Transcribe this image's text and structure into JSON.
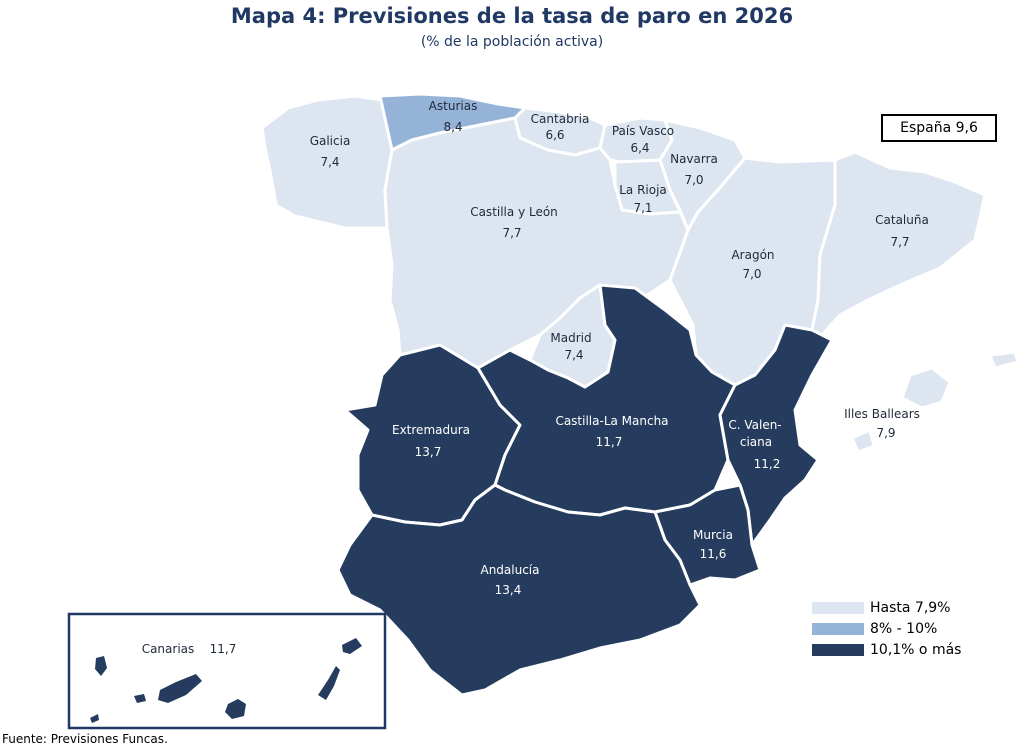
{
  "title": "Mapa 4: Previsiones de la tasa de paro en 2026",
  "subtitle": "(% de la población activa)",
  "national": "España 9,6",
  "colors": {
    "low": "#dde5f1",
    "mid": "#95b3d7",
    "high": "#263c5e"
  },
  "regions": {
    "galicia": {
      "name": "Galicia",
      "value": "7,4",
      "class": "low"
    },
    "asturias": {
      "name": "Asturias",
      "value": "8,4",
      "class": "mid"
    },
    "cantabria": {
      "name": "Cantabria",
      "value": "6,6",
      "class": "low"
    },
    "pais_vasco": {
      "name": "País Vasco",
      "value": "6,4",
      "class": "low"
    },
    "navarra": {
      "name": "Navarra",
      "value": "7,0",
      "class": "low"
    },
    "la_rioja": {
      "name": "La Rioja",
      "value": "7,1",
      "class": "low"
    },
    "castilla_leon": {
      "name": "Castilla y León",
      "value": "7,7",
      "class": "low"
    },
    "aragon": {
      "name": "Aragón",
      "value": "7,0",
      "class": "low"
    },
    "cataluna": {
      "name": "Cataluña",
      "value": "7,7",
      "class": "low"
    },
    "madrid": {
      "name": "Madrid",
      "value": "7,4",
      "class": "low"
    },
    "extremadura": {
      "name": "Extremadura",
      "value": "13,7",
      "class": "high"
    },
    "castilla_la_mancha": {
      "name": "Castilla-La Mancha",
      "value": "11,7",
      "class": "high"
    },
    "c_valenciana": {
      "name1": "C. Valen-",
      "name2": "ciana",
      "value": "11,2",
      "class": "high"
    },
    "baleares": {
      "name": "Illes Ballears",
      "value": "7,9",
      "class": "low"
    },
    "murcia": {
      "name": "Murcia",
      "value": "11,6",
      "class": "high"
    },
    "andalucia": {
      "name": "Andalucía",
      "value": "13,4",
      "class": "high"
    },
    "canarias": {
      "name": "Canarias",
      "value": "11,7",
      "class": "high"
    }
  },
  "legend": [
    {
      "label": "Hasta 7,9%",
      "class": "low"
    },
    {
      "label": "8% - 10%",
      "class": "mid"
    },
    {
      "label": "10,1% o más",
      "class": "high"
    }
  ],
  "source": "Fuente: Previsiones Funcas."
}
